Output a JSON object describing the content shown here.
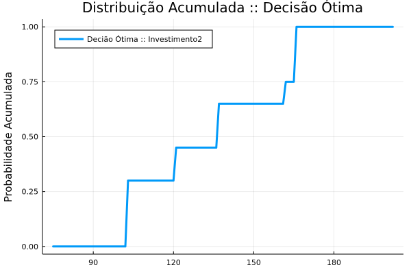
{
  "chart_data": {
    "type": "line",
    "title": "Distribuição Acumulada :: Decisão Ótima",
    "xlabel": "",
    "ylabel": "Probabilidade Acumulada",
    "xlim": [
      71,
      206
    ],
    "ylim": [
      -0.035,
      1.035
    ],
    "x_ticks": [
      90,
      120,
      150,
      180
    ],
    "y_ticks": [
      0.0,
      0.25,
      0.5,
      0.75,
      1.0
    ],
    "x_tick_labels": [
      "90",
      "120",
      "150",
      "180"
    ],
    "y_tick_labels": [
      "0.00",
      "0.25",
      "0.50",
      "0.75",
      "1.00"
    ],
    "grid": true,
    "legend_position": "top-left",
    "series": [
      {
        "name": "Decião Ótima :: Investimento2",
        "color": "#009AF9",
        "x": [
          75,
          102,
          103,
          120,
          121,
          136,
          137,
          161,
          162,
          165,
          166,
          202
        ],
        "y": [
          0.0,
          0.0,
          0.3,
          0.3,
          0.45,
          0.45,
          0.65,
          0.65,
          0.75,
          0.75,
          1.0,
          1.0
        ]
      }
    ]
  }
}
